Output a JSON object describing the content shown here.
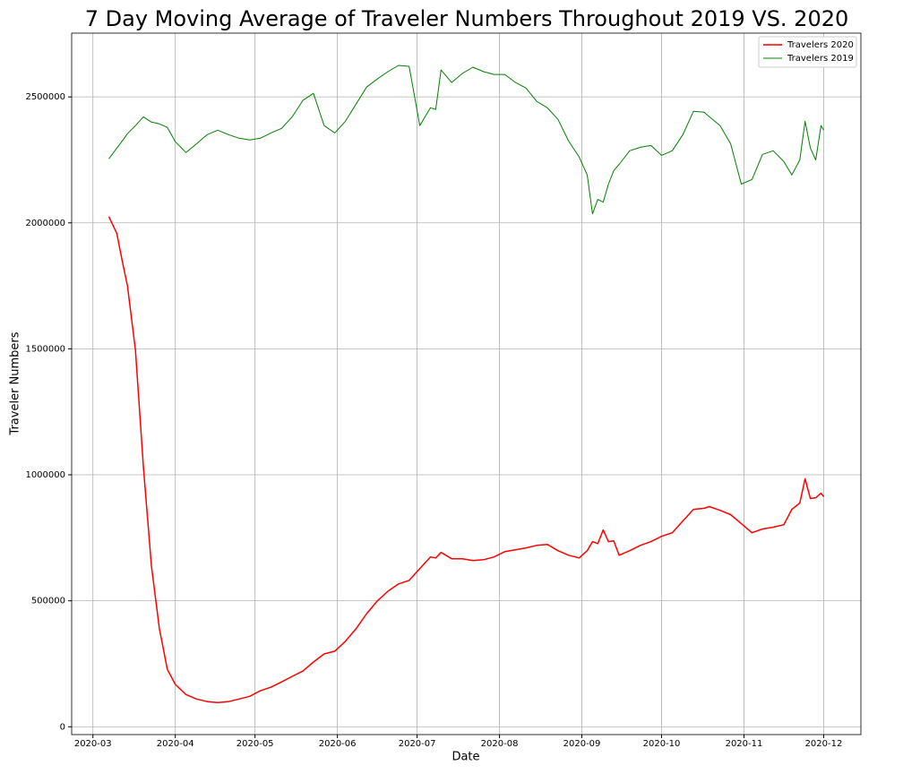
{
  "chart_data": {
    "type": "line",
    "title": "7 Day Moving Average of Traveler Numbers Throughout 2019 VS. 2020",
    "x_label": "Date",
    "y_label": "Traveler Numbers",
    "x": [
      "2020-03-07",
      "2020-03-10",
      "2020-03-12",
      "2020-03-14",
      "2020-03-17",
      "2020-03-20",
      "2020-03-23",
      "2020-03-26",
      "2020-03-29",
      "2020-04-01",
      "2020-04-05",
      "2020-04-09",
      "2020-04-13",
      "2020-04-17",
      "2020-04-21",
      "2020-04-25",
      "2020-04-29",
      "2020-05-03",
      "2020-05-07",
      "2020-05-11",
      "2020-05-15",
      "2020-05-19",
      "2020-05-23",
      "2020-05-27",
      "2020-05-31",
      "2020-06-04",
      "2020-06-08",
      "2020-06-12",
      "2020-06-16",
      "2020-06-20",
      "2020-06-24",
      "2020-06-28",
      "2020-07-02",
      "2020-07-06",
      "2020-07-08",
      "2020-07-10",
      "2020-07-14",
      "2020-07-18",
      "2020-07-22",
      "2020-07-26",
      "2020-07-30",
      "2020-08-03",
      "2020-08-07",
      "2020-08-11",
      "2020-08-15",
      "2020-08-19",
      "2020-08-23",
      "2020-08-27",
      "2020-08-31",
      "2020-09-03",
      "2020-09-05",
      "2020-09-07",
      "2020-09-09",
      "2020-09-11",
      "2020-09-13",
      "2020-09-15",
      "2020-09-19",
      "2020-09-23",
      "2020-09-27",
      "2020-10-01",
      "2020-10-05",
      "2020-10-09",
      "2020-10-13",
      "2020-10-17",
      "2020-10-19",
      "2020-10-23",
      "2020-10-27",
      "2020-10-31",
      "2020-11-04",
      "2020-11-08",
      "2020-11-12",
      "2020-11-16",
      "2020-11-19",
      "2020-11-22",
      "2020-11-24",
      "2020-11-26",
      "2020-11-28",
      "2020-11-30",
      "2020-12-01"
    ],
    "series": [
      {
        "name": "Travelers 2020",
        "color": "#ff0000",
        "width": 1.5,
        "values": [
          2025000,
          1958000,
          1850000,
          1750000,
          1495000,
          1030000,
          640000,
          390000,
          228000,
          168000,
          128000,
          110000,
          100000,
          96000,
          100000,
          110000,
          121000,
          143000,
          157000,
          178000,
          200000,
          221000,
          257000,
          289000,
          300000,
          339000,
          389000,
          449000,
          499000,
          538000,
          567000,
          581000,
          628000,
          674000,
          670000,
          692000,
          667000,
          667000,
          660000,
          663000,
          674000,
          695000,
          702000,
          710000,
          720000,
          724000,
          699000,
          681000,
          670000,
          699000,
          735000,
          727000,
          781000,
          735000,
          738000,
          681000,
          699000,
          720000,
          735000,
          756000,
          770000,
          817000,
          863000,
          867000,
          874000,
          859000,
          842000,
          806000,
          770000,
          785000,
          792000,
          802000,
          863000,
          888000,
          984000,
          906000,
          909000,
          927000,
          913000
        ]
      },
      {
        "name": "Travelers 2019",
        "color": "#008000",
        "width": 1,
        "values": [
          2254000,
          2297000,
          2325000,
          2354000,
          2386000,
          2421000,
          2400000,
          2393000,
          2379000,
          2322000,
          2279000,
          2314000,
          2350000,
          2368000,
          2350000,
          2336000,
          2329000,
          2336000,
          2357000,
          2375000,
          2421000,
          2486000,
          2514000,
          2386000,
          2357000,
          2403000,
          2471000,
          2539000,
          2571000,
          2600000,
          2625000,
          2621000,
          2386000,
          2457000,
          2450000,
          2607000,
          2557000,
          2593000,
          2618000,
          2600000,
          2589000,
          2589000,
          2557000,
          2535000,
          2482000,
          2457000,
          2411000,
          2325000,
          2261000,
          2190000,
          2036000,
          2093000,
          2082000,
          2154000,
          2207000,
          2232000,
          2286000,
          2300000,
          2307000,
          2268000,
          2286000,
          2350000,
          2443000,
          2439000,
          2421000,
          2386000,
          2314000,
          2154000,
          2172000,
          2272000,
          2286000,
          2243000,
          2190000,
          2250000,
          2403000,
          2297000,
          2250000,
          2386000,
          2368000
        ]
      }
    ],
    "xlim": [
      "2020-02-22",
      "2020-12-15"
    ],
    "xticks": [
      {
        "value": "2020-03-01",
        "label": "2020-03"
      },
      {
        "value": "2020-04-01",
        "label": "2020-04"
      },
      {
        "value": "2020-05-01",
        "label": "2020-05"
      },
      {
        "value": "2020-06-01",
        "label": "2020-06"
      },
      {
        "value": "2020-07-01",
        "label": "2020-07"
      },
      {
        "value": "2020-08-01",
        "label": "2020-08"
      },
      {
        "value": "2020-09-01",
        "label": "2020-09"
      },
      {
        "value": "2020-10-01",
        "label": "2020-10"
      },
      {
        "value": "2020-11-01",
        "label": "2020-11"
      },
      {
        "value": "2020-12-01",
        "label": "2020-12"
      }
    ],
    "ylim": [
      -31000,
      2753000
    ],
    "yticks": [
      0,
      500000,
      1000000,
      1500000,
      2000000,
      2500000
    ],
    "grid": true,
    "legend": "upper right"
  }
}
